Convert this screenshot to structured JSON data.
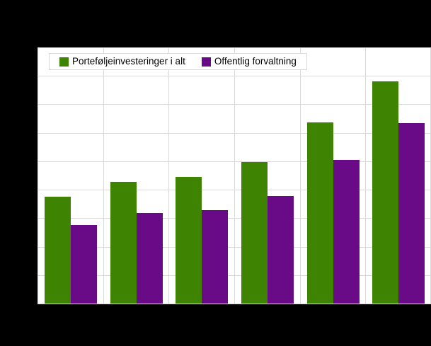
{
  "canvas": {
    "background_color": "#000000",
    "plot_background_color": "#ffffff",
    "gridline_color": "#d9d9d9",
    "axis_line_color": "#000000"
  },
  "legend": {
    "items": [
      {
        "label": "Porteføljeinvesteringer i alt",
        "color": "#3e8402"
      },
      {
        "label": "Offentlig forvaltning",
        "color": "#690a87"
      }
    ]
  },
  "chart_data": {
    "type": "bar",
    "title": "",
    "xlabel": "",
    "ylabel": "",
    "categories": [
      "",
      "",
      "",
      "",
      "",
      ""
    ],
    "series": [
      {
        "name": "Porteføljeinvesteringer i alt",
        "color": "#3e8402",
        "values": [
          3.76,
          4.28,
          4.46,
          4.98,
          6.37,
          7.81
        ]
      },
      {
        "name": "Offentlig forvaltning",
        "color": "#690a87",
        "values": [
          2.76,
          3.19,
          3.29,
          3.79,
          5.05,
          6.34
        ]
      }
    ],
    "ylim": [
      0,
      9
    ],
    "y_gridline_step": 1,
    "x_gridline_count": 6,
    "grid": true,
    "axis_tick_labels_visible": false,
    "legend_position": "top-left-inside"
  }
}
